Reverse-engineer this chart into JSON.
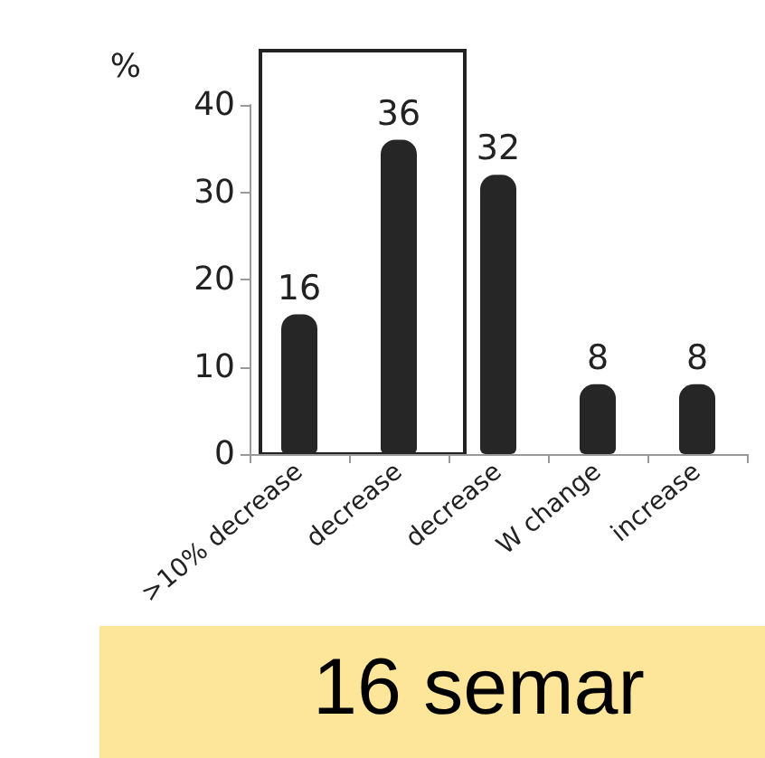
{
  "chart_data": {
    "type": "bar",
    "ylabel": "%",
    "categories": [
      ">10% decrease",
      "decrease",
      "decrease",
      "W change",
      "increase"
    ],
    "values": [
      16,
      36,
      32,
      8,
      8
    ],
    "color": "#262626",
    "ylim": [
      0,
      40
    ],
    "yticks": [
      0,
      10,
      20,
      30,
      40
    ],
    "grid": false,
    "data_labels": true,
    "annotations": [
      "16 semar"
    ]
  }
}
